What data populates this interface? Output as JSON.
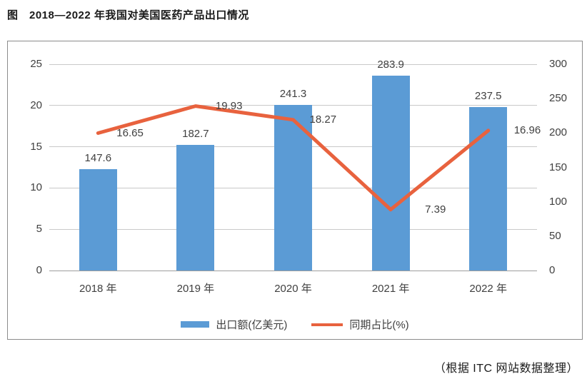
{
  "page": {
    "title": "图　2018—2022 年我国对美国医药产品出口情况",
    "source_note": "（根据 ITC 网站数据整理）"
  },
  "chart_data": {
    "type": "bar",
    "subtype": "combo-bar-line-dual-axis",
    "title": "图 2018—2022 年我国对美国医药产品出口情况",
    "categories": [
      "2018 年",
      "2019 年",
      "2020 年",
      "2021 年",
      "2022 年"
    ],
    "series": [
      {
        "name": "出口额(亿美元)",
        "type": "bar",
        "axis": "right",
        "color": "#5b9bd5",
        "values": [
          147.6,
          182.7,
          241.3,
          283.9,
          237.5
        ]
      },
      {
        "name": "同期占比(%)",
        "type": "line",
        "axis": "left",
        "color": "#e8623e",
        "values": [
          16.65,
          19.93,
          18.27,
          7.39,
          16.96
        ]
      }
    ],
    "left_axis": {
      "min": 0,
      "max": 25,
      "ticks": [
        0,
        5,
        10,
        15,
        20,
        25
      ]
    },
    "right_axis": {
      "min": 0,
      "max": 300,
      "ticks": [
        0,
        50,
        100,
        150,
        200,
        250,
        300
      ]
    },
    "grid": true,
    "legend_position": "bottom"
  }
}
